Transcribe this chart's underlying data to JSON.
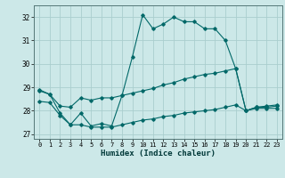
{
  "xlabel": "Humidex (Indice chaleur)",
  "bg_color": "#cce8e8",
  "grid_color": "#aacece",
  "line_color": "#006868",
  "xlim": [
    -0.5,
    23.5
  ],
  "ylim": [
    26.8,
    32.5
  ],
  "xticks": [
    0,
    1,
    2,
    3,
    4,
    5,
    6,
    7,
    8,
    9,
    10,
    11,
    12,
    13,
    14,
    15,
    16,
    17,
    18,
    19,
    20,
    21,
    22,
    23
  ],
  "yticks": [
    27,
    28,
    29,
    30,
    31,
    32
  ],
  "series1_x": [
    0,
    1,
    2,
    3,
    4,
    5,
    6,
    7,
    8,
    9,
    10,
    11,
    12,
    13,
    14,
    15,
    16,
    17,
    18,
    19,
    20,
    21,
    22,
    23
  ],
  "series1_y": [
    28.9,
    28.7,
    27.9,
    27.4,
    27.9,
    27.35,
    27.45,
    27.35,
    28.65,
    30.3,
    32.1,
    31.5,
    31.7,
    32.0,
    31.8,
    31.8,
    31.5,
    31.5,
    31.0,
    29.8,
    28.0,
    28.15,
    28.15,
    28.2
  ],
  "series2_x": [
    0,
    1,
    2,
    3,
    4,
    5,
    6,
    7,
    8,
    9,
    10,
    11,
    12,
    13,
    14,
    15,
    16,
    17,
    18,
    19,
    20,
    21,
    22,
    23
  ],
  "series2_y": [
    28.85,
    28.7,
    28.2,
    28.15,
    28.55,
    28.45,
    28.55,
    28.55,
    28.65,
    28.75,
    28.85,
    28.95,
    29.1,
    29.2,
    29.35,
    29.45,
    29.55,
    29.6,
    29.7,
    29.8,
    28.0,
    28.15,
    28.2,
    28.25
  ],
  "series3_x": [
    0,
    1,
    2,
    3,
    4,
    5,
    6,
    7,
    8,
    9,
    10,
    11,
    12,
    13,
    14,
    15,
    16,
    17,
    18,
    19,
    20,
    21,
    22,
    23
  ],
  "series3_y": [
    28.4,
    28.35,
    27.8,
    27.4,
    27.4,
    27.3,
    27.3,
    27.3,
    27.4,
    27.5,
    27.6,
    27.65,
    27.75,
    27.8,
    27.9,
    27.95,
    28.0,
    28.05,
    28.15,
    28.25,
    28.0,
    28.1,
    28.1,
    28.1
  ]
}
